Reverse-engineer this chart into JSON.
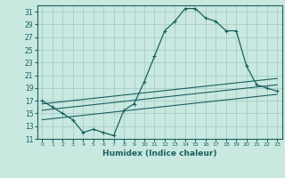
{
  "xlabel": "Humidex (Indice chaleur)",
  "bg_color": "#c8e8e0",
  "grid_color": "#a8ccc8",
  "line_color": "#1a6060",
  "xlim": [
    -0.5,
    23.5
  ],
  "ylim": [
    11,
    32
  ],
  "yticks": [
    11,
    13,
    15,
    17,
    19,
    21,
    23,
    25,
    27,
    29,
    31
  ],
  "xticks": [
    0,
    1,
    2,
    3,
    4,
    5,
    6,
    7,
    8,
    9,
    10,
    11,
    12,
    13,
    14,
    15,
    16,
    17,
    18,
    19,
    20,
    21,
    22,
    23
  ],
  "curve1_x": [
    0,
    1,
    2,
    3,
    4,
    5,
    6,
    7,
    8,
    9,
    10,
    11,
    12,
    13,
    14,
    15,
    16,
    17,
    18,
    19,
    20,
    21,
    22,
    23
  ],
  "curve1_y": [
    17,
    16,
    15,
    14,
    12,
    12.5,
    12,
    11.5,
    15.5,
    16.5,
    20,
    24,
    28,
    29.5,
    31.5,
    31.5,
    30,
    29.5,
    28,
    28,
    22.5,
    19.5,
    19,
    18.5
  ],
  "line2_x": [
    0,
    23
  ],
  "line2_y": [
    16.5,
    20.5
  ],
  "line3_x": [
    0,
    23
  ],
  "line3_y": [
    15.5,
    19.5
  ],
  "line4_x": [
    0,
    23
  ],
  "line4_y": [
    14.0,
    18.0
  ]
}
